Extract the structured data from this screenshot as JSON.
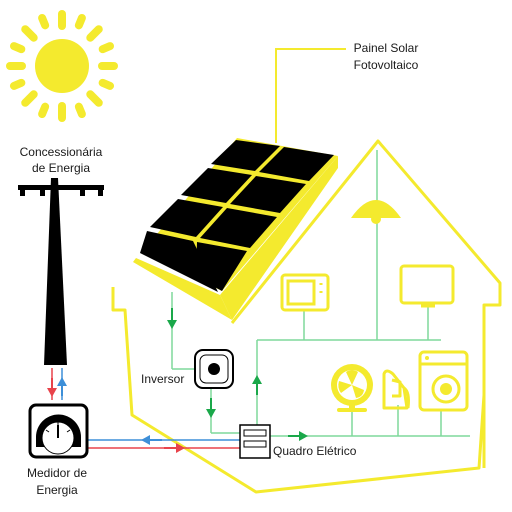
{
  "labels": {
    "panel": [
      "Painel Solar",
      "Fotovoltaico"
    ],
    "utility": [
      "Concessionária",
      "de Energia"
    ],
    "inverter": "Inversor",
    "meter": [
      "Medidor de",
      "Energia"
    ],
    "board": "Quadro Elétrico"
  },
  "colors": {
    "sun": "#f4ea2e",
    "house_outline": "#f4ea2e",
    "panel_cell": "#000000",
    "wire_green": "#7fd99b",
    "arrow_green": "#1aa84a",
    "wire_blue": "#3d8fd8",
    "wire_red": "#e8434b",
    "pole": "#000000"
  },
  "icons": [
    "sun-icon",
    "solar-panel-icon",
    "utility-pole-icon",
    "inverter-icon",
    "energy-meter-icon",
    "electrical-panel-icon",
    "lamp-icon",
    "microwave-icon",
    "tv-icon",
    "fan-icon",
    "iron-icon",
    "washing-machine-icon"
  ]
}
